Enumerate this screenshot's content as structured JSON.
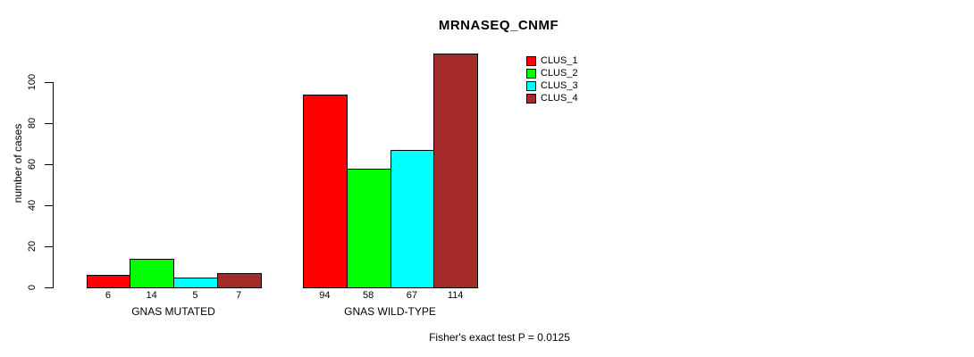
{
  "chart_data": {
    "type": "bar",
    "title": "MRNASEQ_CNMF",
    "ylabel": "number of cases",
    "xlabel": "",
    "footer": "Fisher's exact test P = 0.0125",
    "categories": [
      "GNAS MUTATED",
      "GNAS WILD-TYPE"
    ],
    "series": [
      {
        "name": "CLUS_1",
        "color": "#FF0000",
        "values": [
          6,
          94
        ]
      },
      {
        "name": "CLUS_2",
        "color": "#00FF00",
        "values": [
          14,
          58
        ]
      },
      {
        "name": "CLUS_3",
        "color": "#00FFFF",
        "values": [
          5,
          67
        ]
      },
      {
        "name": "CLUS_4",
        "color": "#A52A2A",
        "values": [
          7,
          114
        ]
      }
    ],
    "yticks": [
      0,
      20,
      40,
      60,
      80,
      100
    ],
    "ylim": [
      0,
      115
    ],
    "grid": false,
    "bar_value_labels": true,
    "legend_position": "top-right",
    "axis_color": "#000000",
    "background": "#FFFFFF"
  }
}
